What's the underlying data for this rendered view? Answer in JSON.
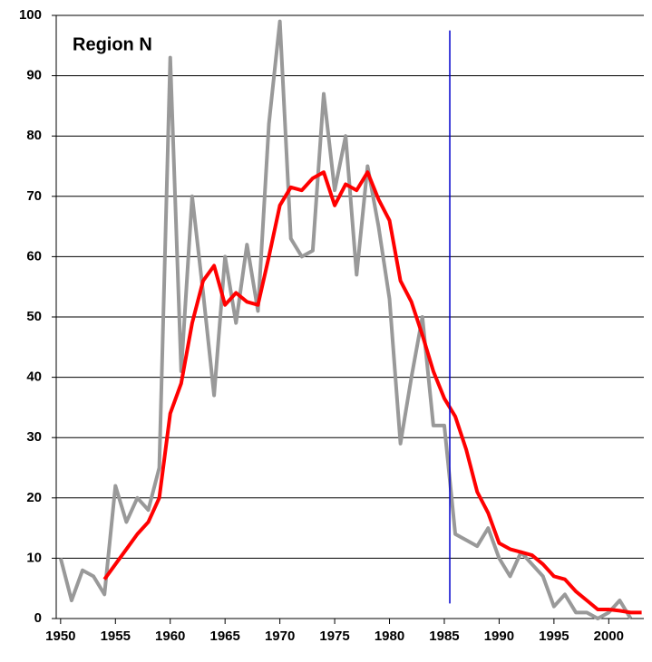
{
  "chart_data": {
    "type": "line",
    "annotation": "Region N",
    "x": [
      1950,
      1951,
      1952,
      1953,
      1954,
      1955,
      1956,
      1957,
      1958,
      1959,
      1960,
      1961,
      1962,
      1963,
      1964,
      1965,
      1966,
      1967,
      1968,
      1969,
      1970,
      1971,
      1972,
      1973,
      1974,
      1975,
      1976,
      1977,
      1978,
      1979,
      1980,
      1981,
      1982,
      1983,
      1984,
      1985,
      1986,
      1987,
      1988,
      1989,
      1990,
      1991,
      1992,
      1993,
      1994,
      1995,
      1996,
      1997,
      1998,
      1999,
      2000,
      2001,
      2002,
      2003
    ],
    "series": [
      {
        "color": "#999999",
        "values": [
          10,
          3,
          8,
          7,
          4,
          22,
          16,
          20,
          18,
          25,
          93,
          41,
          70,
          54,
          37,
          60,
          49,
          62,
          51,
          82,
          99,
          63,
          60,
          61,
          87,
          71,
          80,
          57,
          75,
          65,
          53,
          29,
          40,
          50,
          32,
          32,
          14,
          13,
          12,
          15,
          10,
          7,
          11,
          9,
          7,
          2,
          4,
          1,
          1,
          0,
          1,
          3,
          0,
          null
        ]
      },
      {
        "color": "#ff0000",
        "values": [
          null,
          null,
          null,
          null,
          6.5,
          9,
          11.5,
          14,
          16,
          20,
          34,
          39,
          49,
          56,
          58.5,
          52,
          54,
          52.5,
          52,
          60,
          68.5,
          71.5,
          71,
          73,
          74,
          68.5,
          72,
          71,
          74,
          69.5,
          66,
          56,
          52.5,
          47,
          41,
          36.5,
          33.5,
          28,
          21,
          17.5,
          12.5,
          11.5,
          11,
          10.5,
          9,
          7,
          6.5,
          4.5,
          3,
          1.5,
          1.5,
          1.3,
          1,
          1
        ]
      }
    ],
    "vline": {
      "x": 1985.5,
      "ymin": 2.5,
      "ymax": 97.5,
      "color": "#0000cc"
    },
    "xlim": [
      1949.6,
      2003.2
    ],
    "xticks": [
      1950,
      1955,
      1960,
      1965,
      1970,
      1975,
      1980,
      1985,
      1990,
      1995,
      2000
    ],
    "ylim": [
      0,
      100
    ],
    "yticks": [
      0,
      10,
      20,
      30,
      40,
      50,
      60,
      70,
      80,
      90,
      100
    ],
    "grid": true
  }
}
